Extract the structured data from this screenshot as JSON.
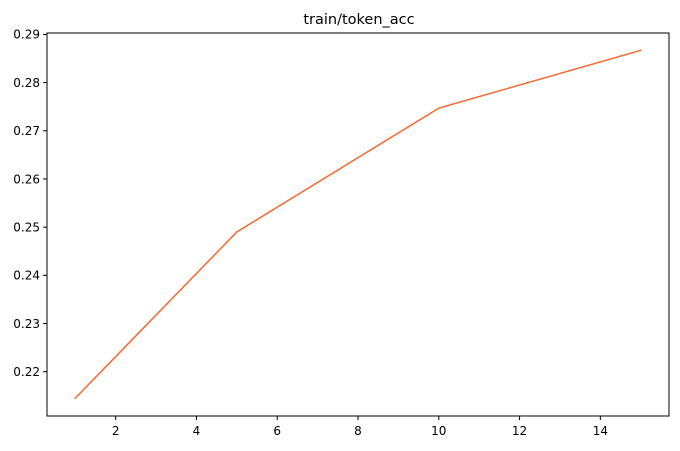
{
  "chart_data": {
    "type": "line",
    "title": "train/token_acc",
    "xlabel": "",
    "ylabel": "",
    "xlim": [
      0.3,
      15.7
    ],
    "ylim": [
      0.2108,
      0.2903
    ],
    "xticks": [
      2,
      4,
      6,
      8,
      10,
      12,
      14
    ],
    "yticks": [
      0.22,
      0.23,
      0.24,
      0.25,
      0.26,
      0.27,
      0.28,
      0.29
    ],
    "xtick_labels": [
      "2",
      "4",
      "6",
      "8",
      "10",
      "12",
      "14"
    ],
    "ytick_labels": [
      "0.22",
      "0.23",
      "0.24",
      "0.25",
      "0.26",
      "0.27",
      "0.28",
      "0.29"
    ],
    "grid": false,
    "legend": "none",
    "series": [
      {
        "color": "#f07040",
        "x": [
          1,
          5,
          10,
          15
        ],
        "y": [
          0.2145,
          0.249,
          0.2747,
          0.2867
        ]
      }
    ]
  }
}
